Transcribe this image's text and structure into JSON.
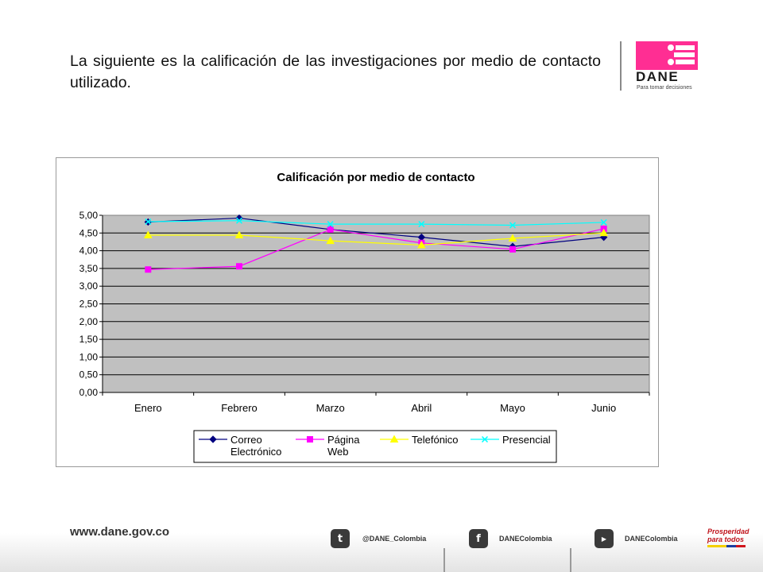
{
  "header": {
    "text": "La siguiente es la calificación de las investigaciones por medio de contacto utilizado."
  },
  "logo": {
    "word": "DANE",
    "tagline": "Para tomar decisiones"
  },
  "chart_data": {
    "type": "line",
    "title": "Calificación por medio de contacto",
    "categories": [
      "Enero",
      "Febrero",
      "Marzo",
      "Abril",
      "Mayo",
      "Junio"
    ],
    "y_ticks": [
      "0,00",
      "0,50",
      "1,00",
      "1,50",
      "2,00",
      "2,50",
      "3,00",
      "3,50",
      "4,00",
      "4,50",
      "5,00"
    ],
    "ylim": [
      0,
      5
    ],
    "grid": true,
    "legend_position": "bottom",
    "series": [
      {
        "name": "Correo Electrónico",
        "label_lines": [
          "Correo",
          "Electrónico"
        ],
        "color": "#000080",
        "marker": "diamond",
        "values": [
          4.81,
          4.92,
          4.6,
          4.38,
          4.12,
          4.38
        ]
      },
      {
        "name": "Página Web",
        "label_lines": [
          "Página",
          "Web"
        ],
        "color": "#ff00ff",
        "marker": "square",
        "values": [
          3.47,
          3.56,
          4.6,
          4.22,
          4.04,
          4.62
        ]
      },
      {
        "name": "Telefónico",
        "label_lines": [
          "Telefónico"
        ],
        "color": "#ffff00",
        "marker": "triangle",
        "values": [
          4.44,
          4.44,
          4.28,
          4.16,
          4.35,
          4.5
        ]
      },
      {
        "name": "Presencial",
        "label_lines": [
          "Presencial"
        ],
        "color": "#00ffff",
        "marker": "x",
        "values": [
          4.82,
          4.85,
          4.75,
          4.75,
          4.72,
          4.8
        ]
      }
    ]
  },
  "footer": {
    "url": "www.dane.gov.co",
    "twitter": "@DANE_Colombia",
    "facebook": "DANEColombia",
    "youtube": "DANEColombia",
    "prosperidad_line1": "Prosperidad",
    "prosperidad_line2": "para todos"
  }
}
